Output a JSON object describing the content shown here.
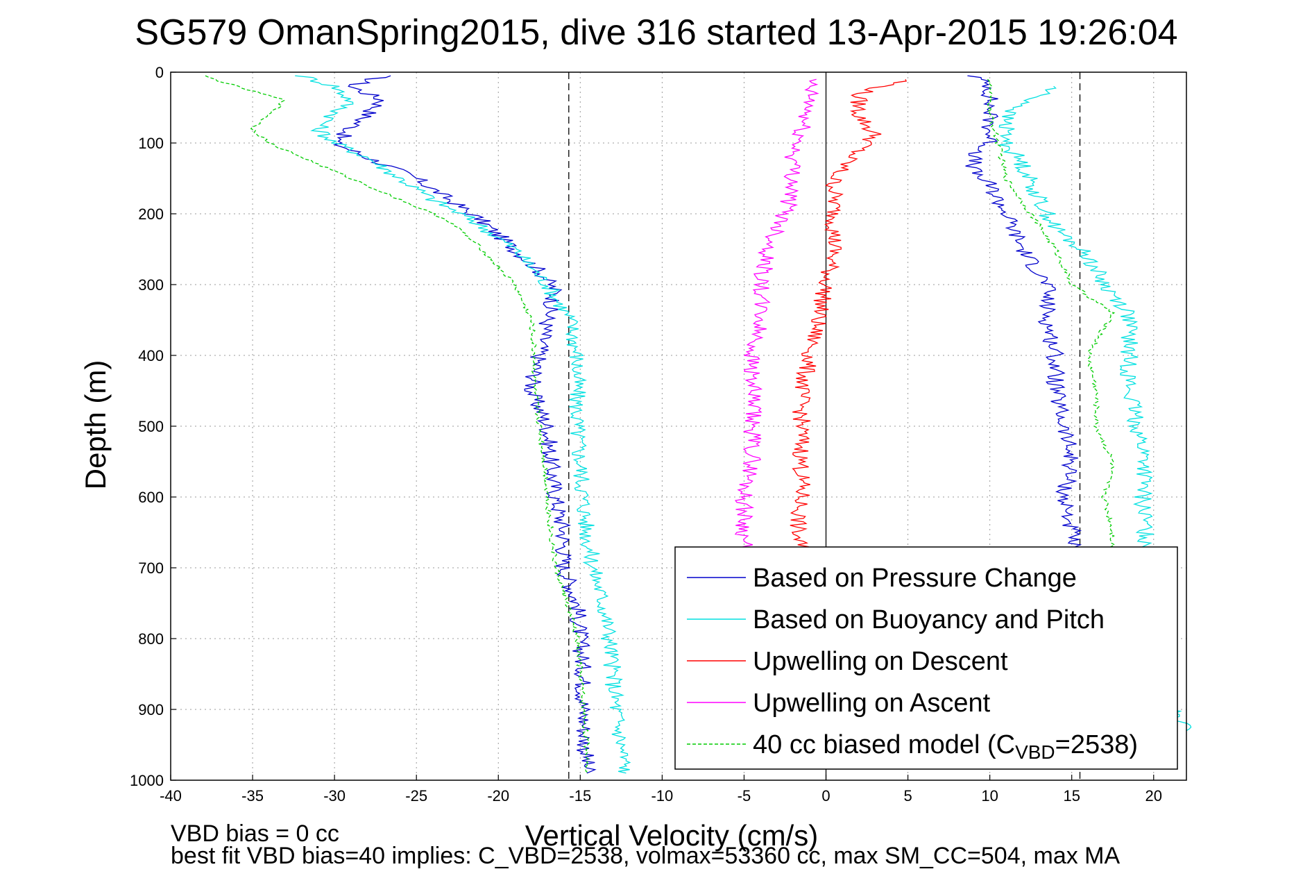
{
  "chart_data": {
    "type": "line",
    "title": "SG579 OmanSpring2015, dive 316 started 13-Apr-2015 19:26:04",
    "xlabel": "Vertical Velocity (cm/s)",
    "ylabel": "Depth (m)",
    "xlim": [
      -40,
      22
    ],
    "ylim": [
      0,
      1000
    ],
    "y_reversed": true,
    "grid": true,
    "x_ticks": [
      -40,
      -35,
      -30,
      -25,
      -20,
      -15,
      -10,
      -5,
      0,
      5,
      10,
      15,
      20
    ],
    "y_ticks": [
      0,
      100,
      200,
      300,
      400,
      500,
      600,
      700,
      800,
      900,
      1000
    ],
    "legend_position": "bottom-right",
    "reference_lines": {
      "vertical_dashed": [
        -15.7,
        15.5
      ],
      "vertical_solid": [
        0
      ]
    },
    "series": [
      {
        "name": "Based on Pressure Change",
        "color": "#0000cc",
        "style": "solid",
        "descent": {
          "depth": [
            5,
            20,
            40,
            60,
            80,
            100,
            120,
            150,
            180,
            210,
            250,
            280,
            310,
            350,
            400,
            450,
            500,
            550,
            600,
            650,
            700,
            750,
            800,
            850,
            900,
            950,
            990
          ],
          "velocity": [
            -27,
            -29,
            -27,
            -28,
            -29,
            -30,
            -28,
            -25,
            -23,
            -21,
            -19,
            -17.5,
            -16.5,
            -17,
            -17.5,
            -18,
            -17,
            -16.8,
            -16.5,
            -16,
            -16,
            -15.2,
            -15,
            -14.8,
            -14.8,
            -14.7,
            -14.6
          ]
        },
        "ascent": {
          "depth": [
            5,
            20,
            40,
            60,
            80,
            100,
            120,
            140,
            160,
            200,
            250,
            300,
            350,
            400,
            450,
            500,
            550,
            600,
            650,
            680
          ],
          "velocity": [
            9,
            10,
            10,
            10,
            10,
            10,
            9,
            9,
            10,
            11,
            12,
            13.5,
            13.5,
            14,
            14,
            14.5,
            15,
            14.5,
            15,
            15
          ]
        }
      },
      {
        "name": "Based on Buoyancy and Pitch",
        "color": "#00e0e0",
        "style": "solid",
        "descent": {
          "depth": [
            5,
            20,
            40,
            60,
            80,
            100,
            120,
            150,
            180,
            210,
            250,
            300,
            350,
            400,
            450,
            500,
            550,
            600,
            650,
            700,
            750,
            800,
            850,
            900,
            950,
            990
          ],
          "velocity": [
            -32,
            -30,
            -29,
            -30,
            -31,
            -30,
            -28,
            -26,
            -24,
            -21.5,
            -19,
            -17,
            -15.6,
            -15.2,
            -15.2,
            -15.2,
            -15,
            -14.8,
            -14.6,
            -14.2,
            -13.6,
            -13.2,
            -13,
            -12.8,
            -12.5,
            -12.2
          ]
        },
        "ascent": {
          "depth": [
            20,
            60,
            100,
            130,
            180,
            220,
            260,
            300,
            340,
            400,
            450,
            500,
            550,
            600,
            650,
            700,
            750,
            800,
            850,
            900,
            930
          ],
          "velocity": [
            14,
            11,
            11,
            12,
            13,
            14,
            16,
            17,
            18.5,
            18.5,
            18.5,
            19,
            19.5,
            19.3,
            19.5,
            19.8,
            20,
            20.2,
            20.5,
            21,
            22
          ]
        }
      },
      {
        "name": "Upwelling on Descent",
        "color": "#ff0000",
        "style": "solid",
        "descent": {
          "depth": [
            10,
            30,
            60,
            90,
            120,
            150,
            200,
            250,
            300,
            350,
            400,
            450,
            500,
            550,
            600,
            650,
            680
          ],
          "velocity": [
            5,
            2,
            2,
            3,
            1.5,
            0.5,
            0.5,
            0.5,
            0,
            -0.5,
            -1,
            -1.5,
            -1.5,
            -1.5,
            -1.5,
            -1.8,
            -1.5
          ]
        }
      },
      {
        "name": "Upwelling on Ascent",
        "color": "#ff00ff",
        "style": "solid",
        "ascent": {
          "depth": [
            10,
            40,
            80,
            120,
            160,
            200,
            250,
            300,
            350,
            400,
            450,
            500,
            550,
            600,
            650,
            680
          ],
          "velocity": [
            -1,
            -1,
            -1.5,
            -2,
            -2,
            -2.5,
            -3.5,
            -4,
            -4,
            -4.5,
            -4.5,
            -4.5,
            -4.5,
            -5,
            -5,
            -5
          ]
        }
      },
      {
        "name": "40 cc biased model (C_VBD=2538)",
        "legend_label_prefix": "40 cc biased model (C",
        "legend_label_sub": "VBD",
        "legend_label_suffix": "=2538)",
        "color": "#00cc00",
        "style": "dashed",
        "descent": {
          "depth": [
            5,
            20,
            40,
            60,
            80,
            100,
            120,
            150,
            180,
            210,
            250,
            300,
            350,
            400,
            450,
            500,
            550,
            600,
            650,
            700,
            750,
            800,
            850,
            900,
            950,
            990
          ],
          "velocity": [
            -38,
            -36,
            -33,
            -34,
            -35,
            -34,
            -32,
            -29,
            -26,
            -23,
            -21,
            -19,
            -18,
            -17.8,
            -17.8,
            -17.5,
            -17.2,
            -17,
            -16.8,
            -16.5,
            -15.8,
            -15.2,
            -15,
            -14.8,
            -14.6,
            -14.5
          ]
        },
        "ascent": {
          "depth": [
            10,
            60,
            100,
            150,
            200,
            250,
            300,
            340,
            400,
            450,
            500,
            550,
            600,
            650,
            680
          ],
          "velocity": [
            10,
            10,
            10.5,
            11,
            12.5,
            14,
            15,
            17.5,
            16,
            16.5,
            16.5,
            17.5,
            17,
            17.5,
            17.5
          ]
        }
      }
    ],
    "annotations": [
      "VBD bias = 0 cc",
      "best fit VBD bias=40 implies: C_VBD=2538, volmax=53360 cc, max SM_CC=504, max MA"
    ]
  }
}
